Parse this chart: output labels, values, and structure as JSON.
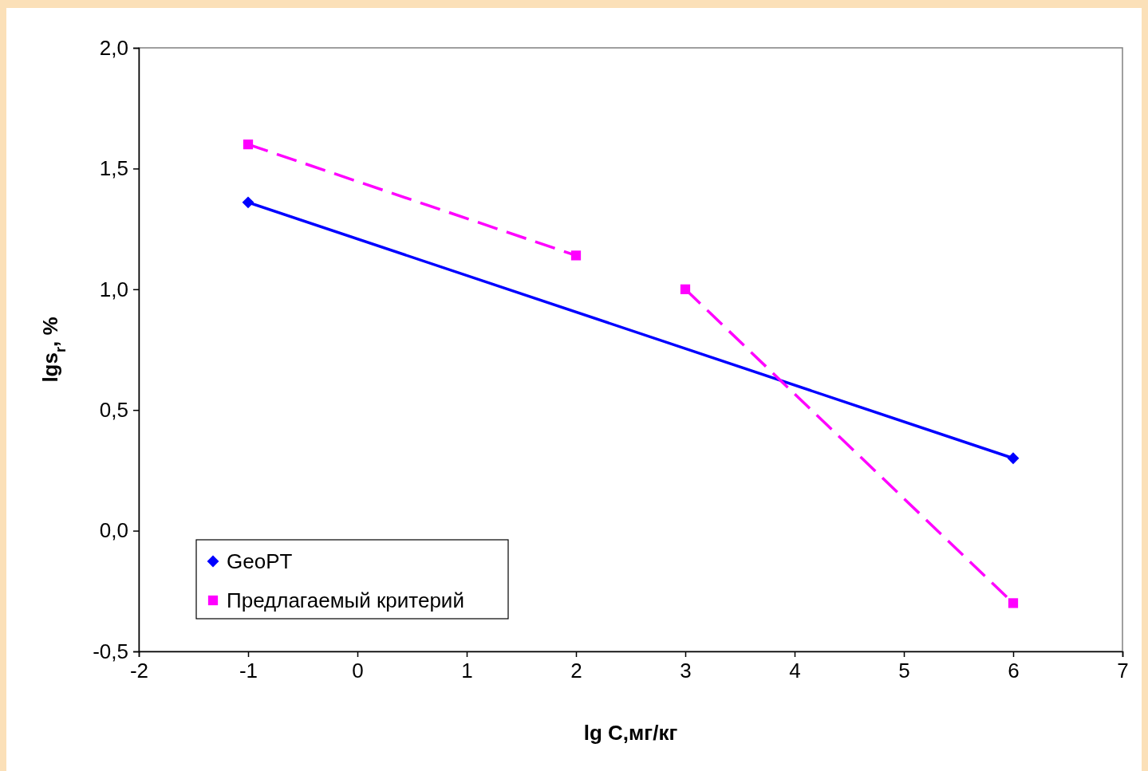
{
  "chart_data": {
    "type": "line",
    "xlabel": "lg C,мг/кг",
    "ylabel": "lgs$_{r}$, %",
    "xlim": [
      -2,
      7
    ],
    "xticks": [
      -2,
      -1,
      0,
      1,
      2,
      3,
      4,
      5,
      6,
      7
    ],
    "ylim": [
      -0.5,
      2
    ],
    "yticks": [
      {
        "value": -0.5,
        "label": "-0,5"
      },
      {
        "value": 0,
        "label": "0,0"
      },
      {
        "value": 0.5,
        "label": "0,5"
      },
      {
        "value": 1,
        "label": "1,0"
      },
      {
        "value": 1.5,
        "label": "1,5"
      },
      {
        "value": 2,
        "label": "2,0"
      }
    ],
    "grid": false,
    "legend": "bottom left",
    "series": [
      {
        "name": "GeoPT",
        "color": "#0000ff",
        "marker": "diamond",
        "line_style": "solid",
        "x": [
          -1,
          6
        ],
        "values": [
          1.36,
          0.3
        ]
      },
      {
        "name": "Предлагаемый критерий",
        "color": "#ff00ff",
        "marker": "square",
        "line_style": "dashed",
        "x": [
          -1,
          2
        ],
        "values": [
          1.6,
          1.14
        ]
      },
      {
        "color": "#ff00ff",
        "marker": "square",
        "line_style": "dashed",
        "x": [
          3,
          6
        ],
        "values": [
          1.0,
          -0.3
        ]
      }
    ]
  }
}
